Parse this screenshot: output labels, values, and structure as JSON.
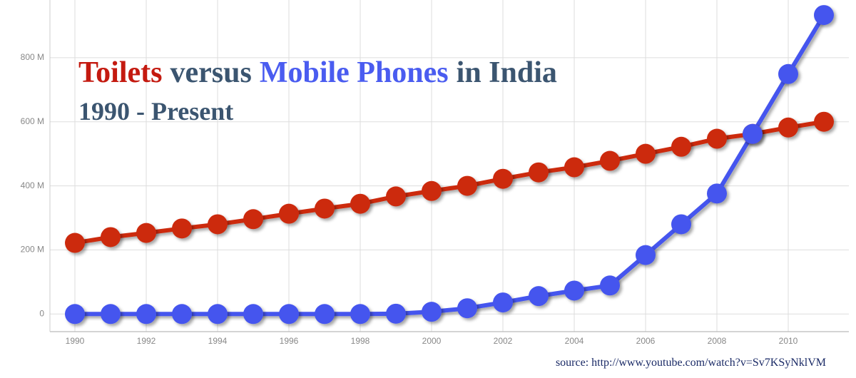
{
  "chart_data": {
    "type": "line",
    "title_parts": [
      {
        "text": "Toilets",
        "color": "#c41a10"
      },
      {
        "text": "versus",
        "color": "#3b5570"
      },
      {
        "text": "Mobile Phones",
        "color": "#4a5cf0"
      },
      {
        "text": "in India",
        "color": "#3b5570"
      }
    ],
    "subtitle": "1990 - Present",
    "source": "source: http://www.youtube.com/watch?v=Sv7KSyNklVM",
    "x": [
      1990,
      1991,
      1992,
      1993,
      1994,
      1995,
      1996,
      1997,
      1998,
      1999,
      2000,
      2001,
      2002,
      2003,
      2004,
      2005,
      2006,
      2007,
      2008,
      2009,
      2010,
      2011
    ],
    "series": [
      {
        "name": "Toilets",
        "color": "#cc2a10",
        "values": [
          222,
          240,
          253,
          267,
          280,
          296,
          313,
          329,
          344,
          367,
          384,
          400,
          422,
          442,
          458,
          478,
          500,
          522,
          547,
          562,
          582,
          600
        ]
      },
      {
        "name": "Mobile Phones",
        "color": "#4455ee",
        "values": [
          0,
          0,
          0,
          0,
          0,
          0,
          0,
          0,
          0,
          1,
          7,
          18,
          36,
          56,
          73,
          89,
          184,
          280,
          376,
          562,
          749,
          933
        ]
      }
    ],
    "xlim": [
      1989.3,
      2011.7
    ],
    "xticks": [
      1990,
      1992,
      1994,
      1996,
      1998,
      2000,
      2002,
      2004,
      2006,
      2008,
      2010
    ],
    "ylim": [
      -55,
      980
    ],
    "yticks": [
      0,
      {
        "value": 200,
        "label": "200 M"
      },
      {
        "value": 400,
        "label": "400 M"
      },
      {
        "value": 600,
        "label": "600 M"
      },
      {
        "value": 800,
        "label": "800 M"
      }
    ],
    "grid": true
  }
}
